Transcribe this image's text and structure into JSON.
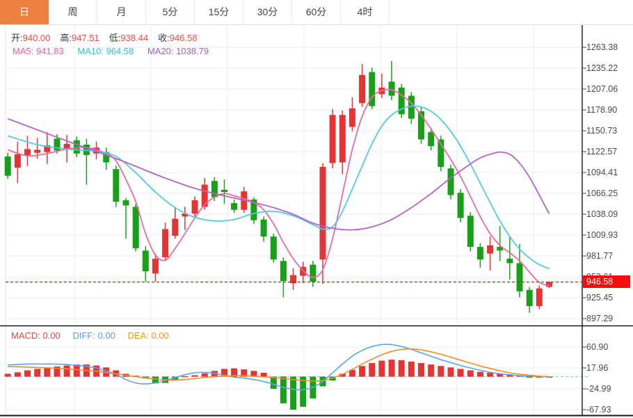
{
  "tabs": {
    "active_index": 0,
    "items": [
      {
        "id": "day",
        "label": "日"
      },
      {
        "id": "week",
        "label": "周"
      },
      {
        "id": "month",
        "label": "月"
      },
      {
        "id": "5min",
        "label": "5分"
      },
      {
        "id": "15min",
        "label": "15分"
      },
      {
        "id": "30min",
        "label": "30分"
      },
      {
        "id": "60min",
        "label": "60分"
      },
      {
        "id": "4hour",
        "label": "4时"
      }
    ]
  },
  "legend": {
    "open_label": "开:",
    "open": "940.00",
    "high_label": "高:",
    "high": "947.51",
    "low_label": "低:",
    "low": "938.44",
    "close_label": "收:",
    "close": "946.58"
  },
  "ma_legend": [
    {
      "label": "MA5:",
      "value": "941.83"
    },
    {
      "label": "MA10:",
      "value": "964.58"
    },
    {
      "label": "MA20:",
      "value": "1038.79"
    }
  ],
  "macd_legend": [
    {
      "label": "MACD:",
      "value": "0.00"
    },
    {
      "label": "DIFF:",
      "value": "0.00"
    },
    {
      "label": "DEA:",
      "value": "0.00"
    }
  ],
  "current_price": "946.58",
  "colors": {
    "up": "#e53434",
    "down": "#18a118",
    "ma5": "#f0699a",
    "ma10": "#4fcbe0",
    "ma20": "#b763c6",
    "diff": "#58a5ee",
    "dea": "#f68b2b",
    "marker": "#f50d0d",
    "zero_dash": "#86cfe3",
    "grid": "#e9eef4",
    "spine": "#14181d",
    "tab_active": "#ee8042"
  },
  "chart_data": {
    "type": "candlestick",
    "title": "Daily K-line with MA5/MA10/MA20 and MACD",
    "price_axis": {
      "labels": [
        "1263.38",
        "1235.22",
        "1207.06",
        "1178.90",
        "1150.73",
        "1122.57",
        "1094.41",
        "1066.25",
        "1038.09",
        "1009.93",
        "981.77",
        "953.61",
        "925.45",
        "897.29"
      ],
      "top_value": 1263.38,
      "step": 28.16,
      "grid": true
    },
    "macd_axis": {
      "labels": [
        "60.90",
        "17.96",
        "-24.99",
        "-67.93"
      ],
      "top_value": 60.9,
      "step": 42.94
    },
    "candles_ohlc": [
      [
        1116,
        1121,
        1086,
        1090
      ],
      [
        1101,
        1136,
        1080,
        1119
      ],
      [
        1118,
        1144,
        1103,
        1126
      ],
      [
        1121,
        1141,
        1113,
        1125
      ],
      [
        1122,
        1149,
        1106,
        1131
      ],
      [
        1140,
        1146,
        1120,
        1124
      ],
      [
        1127,
        1145,
        1108,
        1133
      ],
      [
        1138,
        1143,
        1115,
        1120
      ],
      [
        1132,
        1140,
        1078,
        1118
      ],
      [
        1120,
        1136,
        1112,
        1128
      ],
      [
        1122,
        1128,
        1098,
        1108
      ],
      [
        1099,
        1104,
        1048,
        1055
      ],
      [
        1057,
        1060,
        1005,
        1050
      ],
      [
        1048,
        1052,
        988,
        992
      ],
      [
        989,
        995,
        947,
        961
      ],
      [
        958,
        985,
        947,
        978
      ],
      [
        980,
        1027,
        975,
        1018
      ],
      [
        1009,
        1047,
        1005,
        1032
      ],
      [
        1035,
        1048,
        1017,
        1039
      ],
      [
        1039,
        1062,
        1035,
        1057
      ],
      [
        1048,
        1087,
        1044,
        1078
      ],
      [
        1083,
        1088,
        1056,
        1061
      ],
      [
        1071,
        1085,
        1052,
        1068
      ],
      [
        1053,
        1058,
        1040,
        1044
      ],
      [
        1044,
        1075,
        1040,
        1069
      ],
      [
        1058,
        1061,
        1025,
        1030
      ],
      [
        1031,
        1035,
        1001,
        1008
      ],
      [
        1008,
        1012,
        973,
        977
      ],
      [
        975,
        980,
        926,
        948
      ],
      [
        945,
        965,
        936,
        956
      ],
      [
        955,
        974,
        945,
        967
      ],
      [
        970,
        975,
        940,
        947
      ],
      [
        977,
        1107,
        944,
        1102
      ],
      [
        1107,
        1180,
        1100,
        1172
      ],
      [
        1108,
        1178,
        1092,
        1172
      ],
      [
        1156,
        1196,
        1150,
        1181
      ],
      [
        1188,
        1241,
        1183,
        1226
      ],
      [
        1230,
        1236,
        1180,
        1184
      ],
      [
        1200,
        1228,
        1195,
        1209
      ],
      [
        1217,
        1245,
        1192,
        1198
      ],
      [
        1209,
        1214,
        1168,
        1173
      ],
      [
        1198,
        1203,
        1160,
        1167
      ],
      [
        1177,
        1183,
        1133,
        1139
      ],
      [
        1149,
        1155,
        1124,
        1130
      ],
      [
        1139,
        1144,
        1096,
        1102
      ],
      [
        1100,
        1105,
        1058,
        1064
      ],
      [
        1067,
        1072,
        1027,
        1033
      ],
      [
        1036,
        1041,
        988,
        994
      ],
      [
        994,
        999,
        966,
        977
      ],
      [
        985,
        1008,
        962,
        996
      ],
      [
        994,
        1022,
        975,
        989
      ],
      [
        978,
        1008,
        950,
        972
      ],
      [
        972,
        998,
        926,
        934
      ],
      [
        936,
        940,
        905,
        914
      ],
      [
        914,
        942,
        910,
        938
      ],
      [
        940,
        947.51,
        938.44,
        946.58
      ]
    ],
    "ma5_points": [
      [
        0,
        1125
      ],
      [
        2,
        1117
      ],
      [
        4,
        1120
      ],
      [
        6,
        1126
      ],
      [
        8,
        1128
      ],
      [
        10,
        1120
      ],
      [
        11,
        1110
      ],
      [
        12,
        1085
      ],
      [
        13,
        1055
      ],
      [
        14,
        1012
      ],
      [
        15,
        983
      ],
      [
        16,
        976
      ],
      [
        17,
        992
      ],
      [
        18,
        1012
      ],
      [
        19,
        1033
      ],
      [
        20,
        1051
      ],
      [
        21,
        1061
      ],
      [
        22,
        1066
      ],
      [
        23,
        1063
      ],
      [
        24,
        1059
      ],
      [
        25,
        1054
      ],
      [
        26,
        1044
      ],
      [
        27,
        1025
      ],
      [
        28,
        1000
      ],
      [
        29,
        978
      ],
      [
        30,
        962
      ],
      [
        31,
        953
      ],
      [
        32,
        963
      ],
      [
        33,
        1005
      ],
      [
        34,
        1065
      ],
      [
        35,
        1125
      ],
      [
        36,
        1170
      ],
      [
        37,
        1196
      ],
      [
        38,
        1205
      ],
      [
        39,
        1206
      ],
      [
        40,
        1199
      ],
      [
        41,
        1188
      ],
      [
        42,
        1172
      ],
      [
        43,
        1153
      ],
      [
        44,
        1133
      ],
      [
        45,
        1112
      ],
      [
        46,
        1089
      ],
      [
        47,
        1062
      ],
      [
        48,
        1035
      ],
      [
        49,
        1012
      ],
      [
        50,
        996
      ],
      [
        51,
        986
      ],
      [
        52,
        975
      ],
      [
        53,
        960
      ],
      [
        54,
        946
      ],
      [
        55,
        941.83
      ]
    ],
    "ma10_points": [
      [
        0,
        1144
      ],
      [
        3,
        1132
      ],
      [
        6,
        1126
      ],
      [
        9,
        1123
      ],
      [
        11,
        1116
      ],
      [
        13,
        1094
      ],
      [
        15,
        1068
      ],
      [
        17,
        1047
      ],
      [
        19,
        1034
      ],
      [
        21,
        1029
      ],
      [
        23,
        1031
      ],
      [
        25,
        1039
      ],
      [
        27,
        1042
      ],
      [
        29,
        1036
      ],
      [
        31,
        1024
      ],
      [
        32,
        1018
      ],
      [
        33,
        1021
      ],
      [
        34,
        1042
      ],
      [
        35,
        1072
      ],
      [
        36,
        1103
      ],
      [
        37,
        1133
      ],
      [
        38,
        1157
      ],
      [
        39,
        1172
      ],
      [
        40,
        1180
      ],
      [
        41,
        1184
      ],
      [
        42,
        1183
      ],
      [
        43,
        1177
      ],
      [
        44,
        1166
      ],
      [
        45,
        1150
      ],
      [
        46,
        1130
      ],
      [
        47,
        1106
      ],
      [
        48,
        1080
      ],
      [
        49,
        1054
      ],
      [
        50,
        1029
      ],
      [
        51,
        1008
      ],
      [
        52,
        991
      ],
      [
        53,
        979
      ],
      [
        54,
        970
      ],
      [
        55,
        964.58
      ]
    ],
    "ma20_points": [
      [
        0,
        1167
      ],
      [
        3,
        1152
      ],
      [
        6,
        1137
      ],
      [
        9,
        1123
      ],
      [
        12,
        1108
      ],
      [
        15,
        1092
      ],
      [
        17,
        1082
      ],
      [
        19,
        1073
      ],
      [
        21,
        1066
      ],
      [
        23,
        1060
      ],
      [
        25,
        1054
      ],
      [
        27,
        1047
      ],
      [
        29,
        1038
      ],
      [
        31,
        1026
      ],
      [
        33,
        1019
      ],
      [
        35,
        1017
      ],
      [
        37,
        1021
      ],
      [
        39,
        1031
      ],
      [
        41,
        1047
      ],
      [
        43,
        1066
      ],
      [
        45,
        1087
      ],
      [
        47,
        1106
      ],
      [
        48,
        1114
      ],
      [
        49,
        1119
      ],
      [
        50,
        1122
      ],
      [
        51,
        1119
      ],
      [
        52,
        1107
      ],
      [
        53,
        1088
      ],
      [
        54,
        1064
      ],
      [
        55,
        1038.79
      ]
    ],
    "macd_hist": [
      6,
      9,
      13,
      16,
      19,
      21,
      23,
      25,
      25,
      23,
      19,
      13,
      6,
      2,
      -4,
      -14,
      -13,
      -6,
      1,
      3,
      7,
      12,
      16,
      17,
      15,
      12,
      8,
      -25,
      -55,
      -68,
      -62,
      -45,
      -20,
      -8,
      6,
      14,
      22,
      28,
      33,
      35,
      34,
      31,
      28,
      25,
      22,
      19,
      16,
      13,
      10,
      8,
      6,
      4,
      2,
      -1,
      -2,
      -1
    ],
    "diff_points": [
      [
        0,
        24
      ],
      [
        2,
        26
      ],
      [
        4,
        26
      ],
      [
        6,
        25
      ],
      [
        8,
        21
      ],
      [
        9,
        18
      ],
      [
        10,
        12
      ],
      [
        11,
        5
      ],
      [
        12,
        -6
      ],
      [
        13,
        -13
      ],
      [
        14,
        -15
      ],
      [
        15,
        -13
      ],
      [
        16,
        -8
      ],
      [
        17,
        -2
      ],
      [
        18,
        4
      ],
      [
        19,
        8
      ],
      [
        20,
        9
      ],
      [
        21,
        7
      ],
      [
        22,
        3
      ],
      [
        23,
        -1
      ],
      [
        24,
        -3
      ],
      [
        25,
        -6
      ],
      [
        26,
        -10
      ],
      [
        27,
        -16
      ],
      [
        28,
        -22
      ],
      [
        29,
        -26
      ],
      [
        30,
        -27
      ],
      [
        31,
        -22
      ],
      [
        32,
        -10
      ],
      [
        33,
        8
      ],
      [
        34,
        26
      ],
      [
        35,
        42
      ],
      [
        36,
        54
      ],
      [
        37,
        62
      ],
      [
        38,
        66
      ],
      [
        39,
        66
      ],
      [
        40,
        62
      ],
      [
        41,
        56
      ],
      [
        42,
        49
      ],
      [
        43,
        42
      ],
      [
        44,
        35
      ],
      [
        45,
        29
      ],
      [
        46,
        23
      ],
      [
        47,
        18
      ],
      [
        48,
        13
      ],
      [
        49,
        9
      ],
      [
        50,
        6
      ],
      [
        51,
        4
      ],
      [
        52,
        2
      ],
      [
        53,
        1
      ],
      [
        54,
        0.5
      ],
      [
        55,
        0
      ]
    ],
    "dea_points": [
      [
        0,
        21
      ],
      [
        3,
        19
      ],
      [
        6,
        16
      ],
      [
        9,
        11
      ],
      [
        11,
        6
      ],
      [
        13,
        0
      ],
      [
        15,
        -5
      ],
      [
        17,
        -7
      ],
      [
        19,
        -4
      ],
      [
        21,
        0
      ],
      [
        23,
        2
      ],
      [
        25,
        1
      ],
      [
        27,
        -2
      ],
      [
        29,
        -6
      ],
      [
        31,
        -9
      ],
      [
        32,
        -8
      ],
      [
        33,
        -3
      ],
      [
        34,
        5
      ],
      [
        35,
        15
      ],
      [
        36,
        26
      ],
      [
        37,
        36
      ],
      [
        38,
        45
      ],
      [
        39,
        52
      ],
      [
        40,
        56
      ],
      [
        41,
        57
      ],
      [
        42,
        55
      ],
      [
        43,
        51
      ],
      [
        44,
        46
      ],
      [
        45,
        40
      ],
      [
        46,
        34
      ],
      [
        47,
        28
      ],
      [
        48,
        22
      ],
      [
        49,
        17
      ],
      [
        50,
        12
      ],
      [
        51,
        8
      ],
      [
        52,
        5
      ],
      [
        53,
        3
      ],
      [
        54,
        1
      ],
      [
        55,
        0
      ]
    ]
  }
}
